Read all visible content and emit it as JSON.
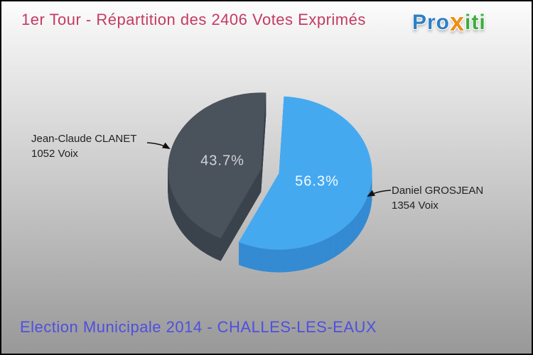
{
  "header": {
    "title": "1er Tour - Répartition des 2406 Votes Exprimés"
  },
  "logo": {
    "pre": "Pro",
    "x": "x",
    "post": "iti",
    "pre_color": "#2e7fc6",
    "x_color": "#f08d14",
    "post_color": "#3aad3e"
  },
  "footer": {
    "title": "Election Municipale 2014 - CHALLES-LES-EAUX"
  },
  "chart_data": {
    "type": "pie",
    "title": "1er Tour - Répartition des 2406 Votes Exprimés",
    "total_votes": 2406,
    "total_votes_label": "2406 Votes Exprimés",
    "legend_position": "callouts",
    "style": "3d-exploded",
    "slices": [
      {
        "label": "Daniel GROSJEAN",
        "votes": 1354,
        "votes_label": "1354 Voix",
        "percent": 56.3,
        "percent_label": "56.3%",
        "color": "#45a9f0",
        "side_color": "#358bd2"
      },
      {
        "label": "Jean-Claude CLANET",
        "votes": 1052,
        "votes_label": "1052 Voix",
        "percent": 43.7,
        "percent_label": "43.7%",
        "color": "#4a525c",
        "side_color": "#3b434d"
      }
    ]
  }
}
